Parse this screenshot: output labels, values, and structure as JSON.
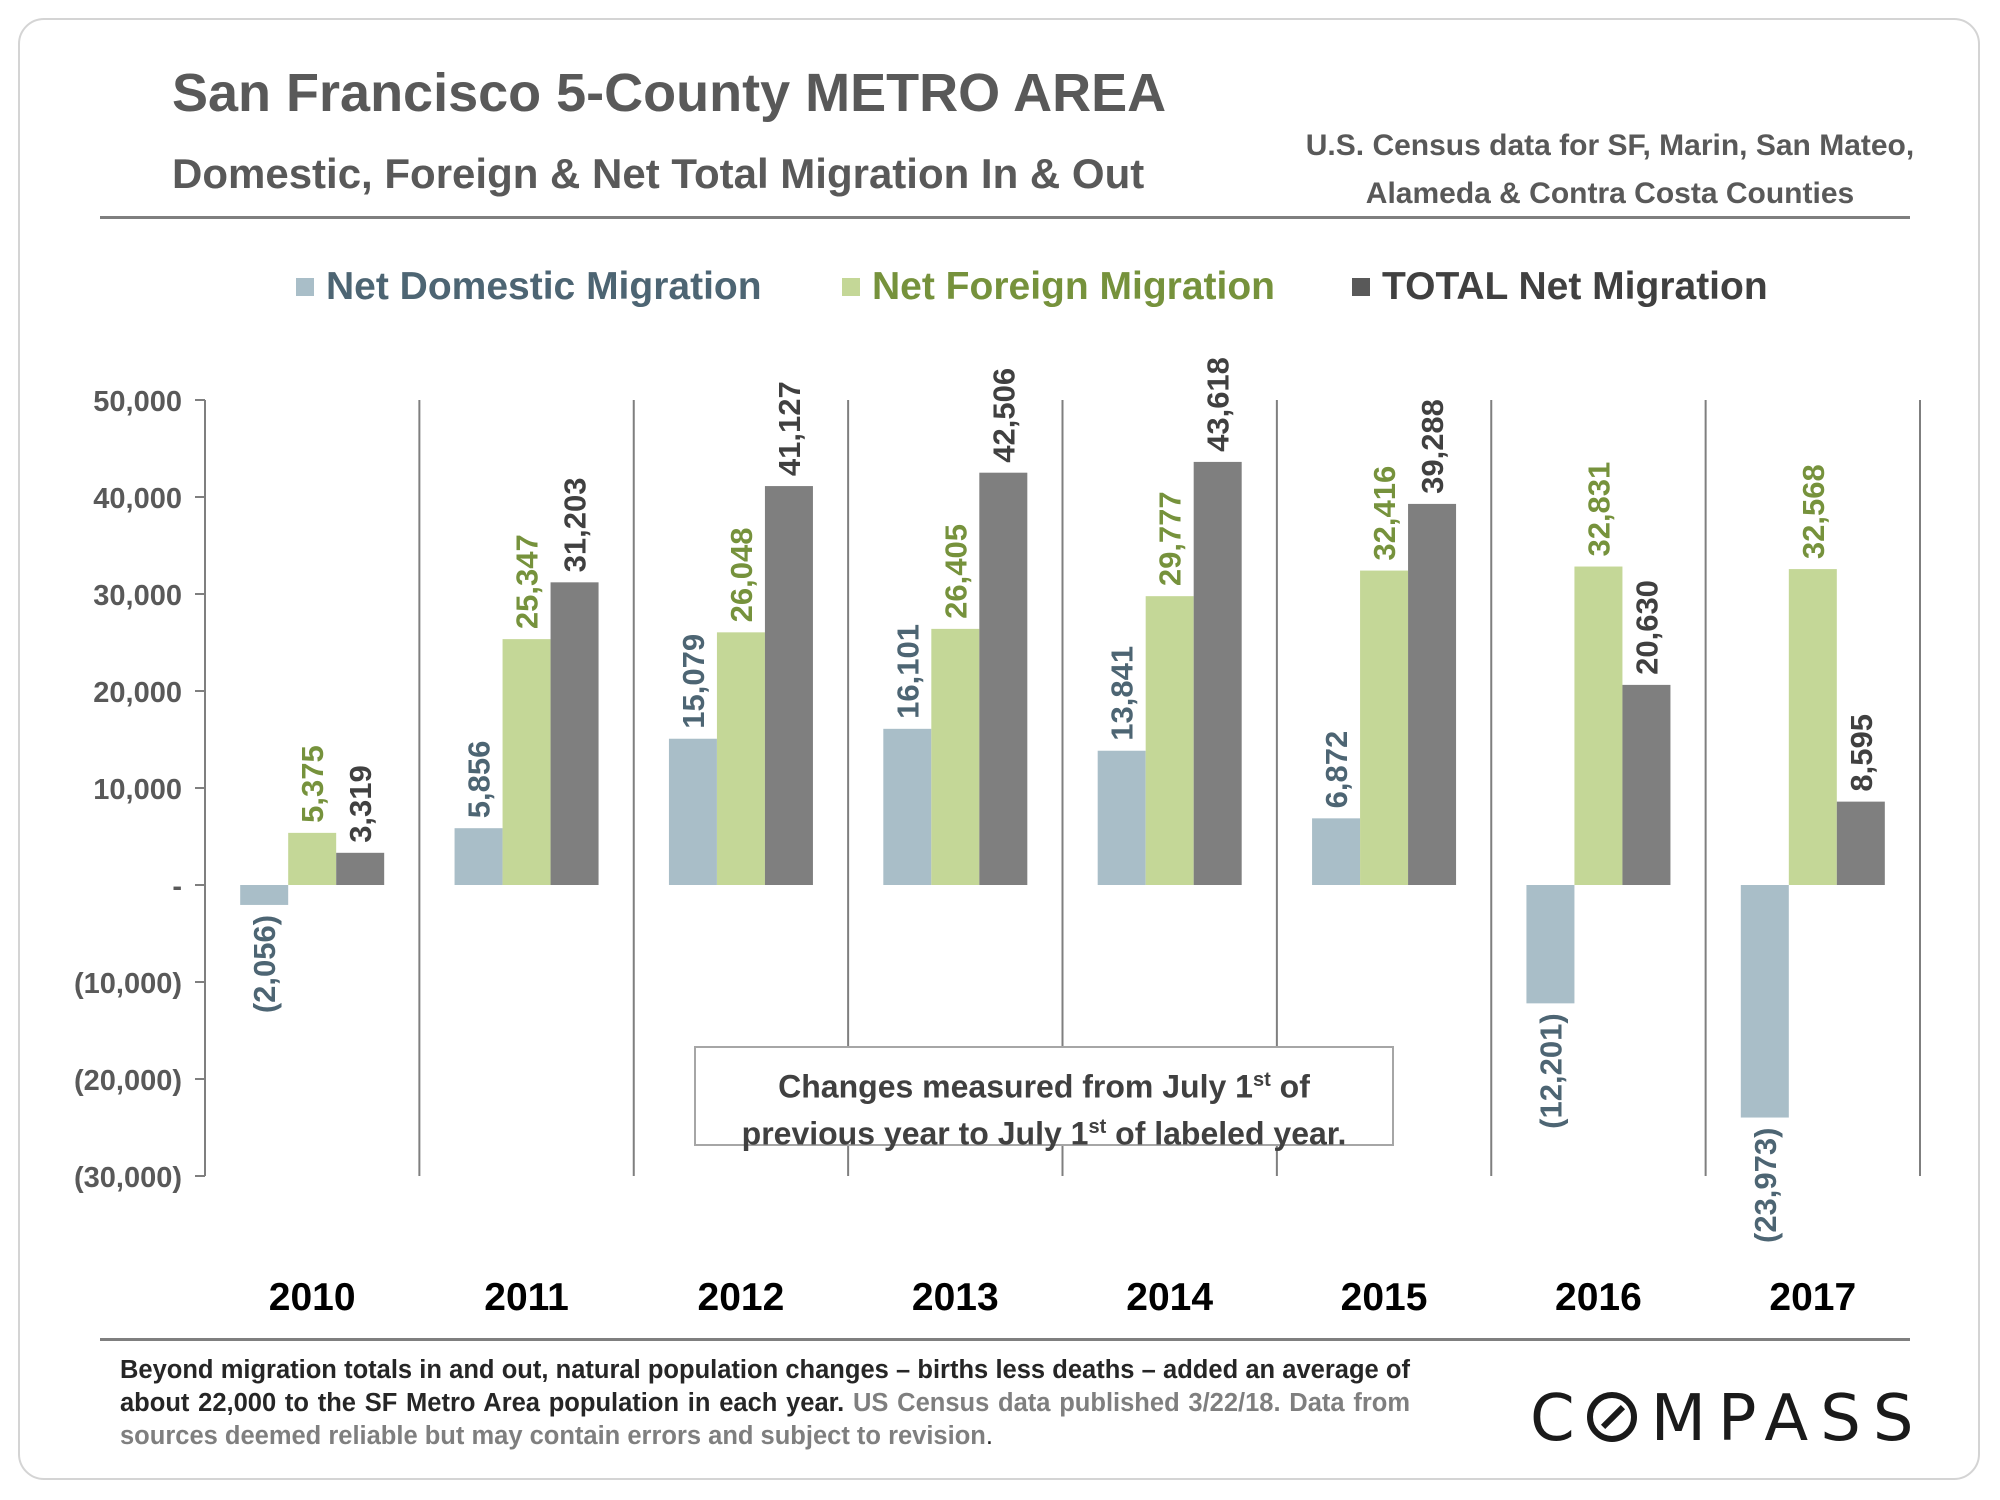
{
  "title": "San Francisco 5-County METRO AREA",
  "subtitle": "Domestic, Foreign & Net Total Migration In & Out",
  "source": {
    "line1": "U.S. Census data for SF, Marin, San Mateo,",
    "line2": "Alameda & Contra Costa Counties"
  },
  "colors": {
    "domestic": "#a9bec8",
    "foreign": "#c4d797",
    "total": "#7f7f7f",
    "domestic_text": "#4d6573",
    "foreign_text": "#76923c",
    "total_text": "#404040",
    "axis": "#7f7f7f"
  },
  "note": {
    "line1_pre": "Changes measured from July 1",
    "line1_sup": "st",
    "line1_post": " of",
    "line2_pre": "previous year to July 1",
    "line2_sup": "st",
    "line2_post": " of labeled year."
  },
  "footnote": {
    "bold_text": "Beyond migration totals in and out, natural population changes – births less deaths – added an average of about 22,000 to the SF Metro Area population in each year.",
    "gray_text": "US Census data published 3/22/18. Data from sources deemed reliable but may contain errors and subject to revision",
    "end": "."
  },
  "logo": {
    "initial": "C",
    "rest": "MPASS"
  },
  "chart_data": {
    "type": "bar",
    "categories": [
      "2010",
      "2011",
      "2012",
      "2013",
      "2014",
      "2015",
      "2016",
      "2017"
    ],
    "series": [
      {
        "name": "Net Domestic Migration",
        "values": [
          -2056,
          5856,
          15079,
          16101,
          13841,
          6872,
          -12201,
          -23973
        ]
      },
      {
        "name": "Net Foreign Migration",
        "values": [
          5375,
          25347,
          26048,
          26405,
          29777,
          32416,
          32831,
          32568
        ]
      },
      {
        "name": "TOTAL Net Migration",
        "values": [
          3319,
          31203,
          41127,
          42506,
          43618,
          39288,
          20630,
          8595
        ]
      }
    ],
    "data_labels": [
      [
        "(2,056)",
        "5,856",
        "15,079",
        "16,101",
        "13,841",
        "6,872",
        "(12,201)",
        "(23,973)"
      ],
      [
        "5,375",
        "25,347",
        "26,048",
        "26,405",
        "29,777",
        "32,416",
        "32,831",
        "32,568"
      ],
      [
        "3,319",
        "31,203",
        "41,127",
        "42,506",
        "43,618",
        "39,288",
        "20,630",
        "8,595"
      ]
    ],
    "y_ticks": [
      50000,
      40000,
      30000,
      20000,
      10000,
      0,
      -10000,
      -20000,
      -30000
    ],
    "y_tick_labels": [
      "50,000",
      "40,000",
      "30,000",
      "20,000",
      "10,000",
      "-",
      "(10,000)",
      "(20,000)",
      "(30,000)"
    ],
    "ylim": [
      -30000,
      50000
    ],
    "title": "San Francisco 5-County METRO AREA",
    "xlabel": "",
    "ylabel": "",
    "legend": "top"
  }
}
